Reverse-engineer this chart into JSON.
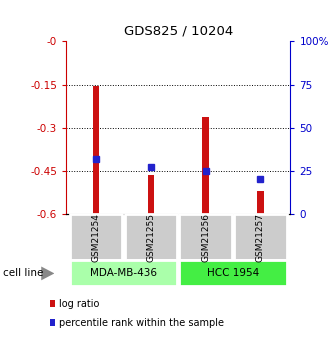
{
  "title": "GDS825 / 10204",
  "samples": [
    "GSM21254",
    "GSM21255",
    "GSM21256",
    "GSM21257"
  ],
  "log_ratios": [
    -0.155,
    -0.463,
    -0.262,
    -0.522
  ],
  "percentile_ranks": [
    32,
    27,
    25,
    20
  ],
  "cell_lines": [
    "MDA-MB-436",
    "HCC 1954"
  ],
  "cell_line_spans": [
    [
      0,
      1
    ],
    [
      2,
      3
    ]
  ],
  "cell_line_colors": [
    "#aaffaa",
    "#44ee44"
  ],
  "ylim_left": [
    -0.6,
    0.0
  ],
  "ylim_right": [
    0,
    100
  ],
  "yticks_left": [
    -0.0,
    -0.15,
    -0.3,
    -0.45,
    -0.6
  ],
  "yticks_left_labels": [
    "-0",
    "-0.15",
    "-0.3",
    "-0.45",
    "-0.6"
  ],
  "yticks_right": [
    0,
    25,
    50,
    75,
    100
  ],
  "yticks_right_labels": [
    "0",
    "25",
    "50",
    "75",
    "100%"
  ],
  "bar_color": "#cc1111",
  "marker_color": "#2222cc",
  "bar_bottom": -0.6,
  "bar_width": 0.12,
  "left_axis_color": "#cc0000",
  "right_axis_color": "#0000cc",
  "sample_box_color": "#cccccc",
  "legend_labels": [
    "log ratio",
    "percentile rank within the sample"
  ]
}
